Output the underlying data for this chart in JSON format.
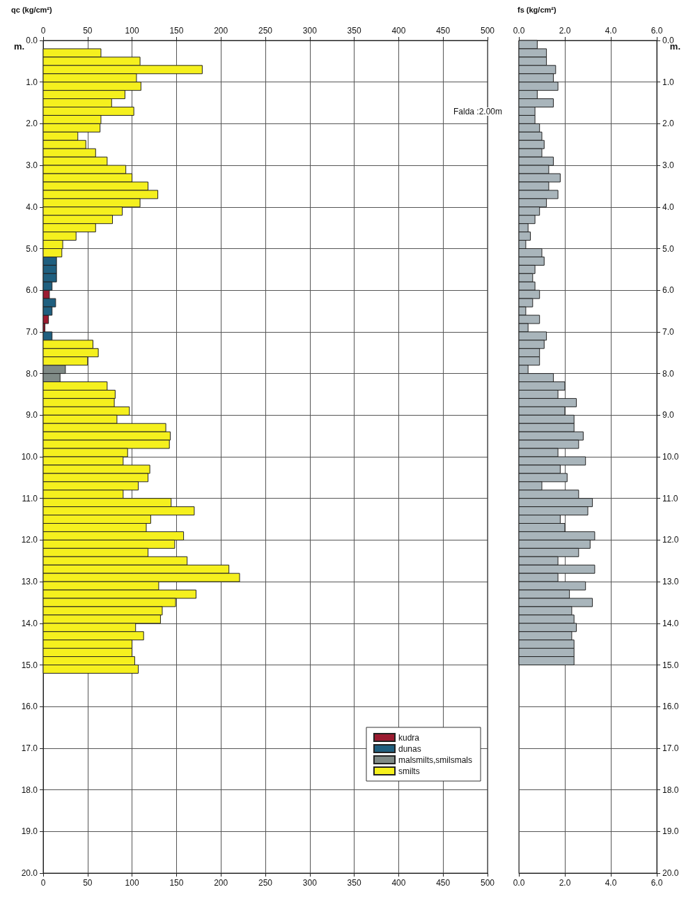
{
  "chart_data": [
    {
      "type": "bar",
      "orientation": "horizontal",
      "x2label": "qc (kg/cm²)",
      "ylabel": "m.",
      "xlim": [
        0,
        500
      ],
      "xticks": [
        0,
        50,
        100,
        150,
        200,
        250,
        300,
        350,
        400,
        450,
        500
      ],
      "x2lim": [
        0,
        500
      ],
      "x2ticks": [
        0,
        50,
        100,
        150,
        200,
        250,
        300,
        350,
        400,
        450,
        500
      ],
      "ylim": [
        20,
        0
      ],
      "yticks": [
        {
          "value": 0,
          "label": "0.0"
        },
        {
          "value": 1,
          "label": "1.0"
        },
        {
          "value": 2,
          "label": "2.0"
        },
        {
          "value": 3,
          "label": "3.0"
        },
        {
          "value": 4,
          "label": "4.0"
        },
        {
          "value": 5,
          "label": "5.0"
        },
        {
          "value": 6,
          "label": "6.0"
        },
        {
          "value": 7,
          "label": "7.0"
        },
        {
          "value": 8,
          "label": "8.0"
        },
        {
          "value": 9,
          "label": "9.0"
        },
        {
          "value": 10,
          "label": "10.0"
        },
        {
          "value": 11,
          "label": "11.0"
        },
        {
          "value": 12,
          "label": "12.0"
        },
        {
          "value": 13,
          "label": "13.0"
        },
        {
          "value": 14,
          "label": "14.0"
        },
        {
          "value": 15,
          "label": "15.0"
        },
        {
          "value": 16,
          "label": "16.0"
        },
        {
          "value": 17,
          "label": "17.0"
        },
        {
          "value": 18,
          "label": "18.0"
        },
        {
          "value": 19,
          "label": "19.0"
        },
        {
          "value": 20,
          "label": "20.0"
        }
      ],
      "grid": true,
      "legend": "bottom right",
      "annotations": [
        "Falda :2.00m"
      ],
      "series": [
        {
          "name": "kudra",
          "color": "#9b1b30",
          "x": [
            6.1,
            6.7,
            6.9
          ],
          "values": [
            7,
            6,
            2
          ]
        },
        {
          "name": "dunas",
          "color": "#1f5f7f",
          "x": [
            5.3,
            5.5,
            5.7,
            5.9,
            6.3,
            6.5,
            7.1
          ],
          "values": [
            15,
            15,
            15,
            10,
            14,
            10,
            10
          ]
        },
        {
          "name": "malsmilts,smilsmals",
          "color": "#7f8a86",
          "x": [
            7.9,
            8.1
          ],
          "values": [
            25,
            19
          ]
        },
        {
          "name": "smilts",
          "color": "#f5f01e",
          "x": [
            0.3,
            0.5,
            0.7,
            0.9,
            1.1,
            1.3,
            1.5,
            1.7,
            1.9,
            2.1,
            2.3,
            2.5,
            2.7,
            2.9,
            3.1,
            3.3,
            3.5,
            3.7,
            3.9,
            4.1,
            4.3,
            4.5,
            4.7,
            4.9,
            5.1,
            7.3,
            7.5,
            7.7,
            8.3,
            8.5,
            8.7,
            8.9,
            9.1,
            9.3,
            9.5,
            9.7,
            9.9,
            10.1,
            10.3,
            10.5,
            10.7,
            10.9,
            11.1,
            11.3,
            11.5,
            11.7,
            11.9,
            12.1,
            12.3,
            12.5,
            12.7,
            12.9,
            13.1,
            13.3,
            13.5,
            13.7,
            13.9,
            14.1,
            14.3,
            14.5,
            14.7,
            14.9,
            15.1
          ],
          "values": [
            65,
            109,
            179,
            105,
            110,
            92,
            77,
            102,
            65,
            64,
            39,
            48,
            59,
            72,
            93,
            100,
            118,
            129,
            109,
            89,
            78,
            59,
            37,
            22,
            21,
            56,
            62,
            50,
            72,
            81,
            80,
            97,
            83,
            138,
            143,
            142,
            95,
            90,
            120,
            118,
            107,
            90,
            144,
            170,
            121,
            116,
            158,
            148,
            118,
            162,
            209,
            221,
            130,
            172,
            149,
            134,
            132,
            104,
            113,
            100,
            100,
            103,
            107
          ]
        }
      ]
    },
    {
      "type": "bar",
      "orientation": "horizontal",
      "x2label": "fs (kg/cm²)",
      "ylabel": "m.",
      "xlim": [
        0,
        6
      ],
      "xticks": [
        {
          "value": 0,
          "label": "0.0"
        },
        {
          "value": 2,
          "label": "2.0"
        },
        {
          "value": 4,
          "label": "4.0"
        },
        {
          "value": 6,
          "label": "6.0"
        }
      ],
      "x2lim": [
        0,
        6
      ],
      "x2ticks": [
        {
          "value": 0,
          "label": "0.0"
        },
        {
          "value": 2,
          "label": "2.0"
        },
        {
          "value": 4,
          "label": "4.0"
        },
        {
          "value": 6,
          "label": "6.0"
        }
      ],
      "ylim": [
        20,
        0
      ],
      "yticks": [
        {
          "value": 0,
          "label": "0.0"
        },
        {
          "value": 1,
          "label": "1.0"
        },
        {
          "value": 2,
          "label": "2.0"
        },
        {
          "value": 3,
          "label": "3.0"
        },
        {
          "value": 4,
          "label": "4.0"
        },
        {
          "value": 5,
          "label": "5.0"
        },
        {
          "value": 6,
          "label": "6.0"
        },
        {
          "value": 7,
          "label": "7.0"
        },
        {
          "value": 8,
          "label": "8.0"
        },
        {
          "value": 9,
          "label": "9.0"
        },
        {
          "value": 10,
          "label": "10.0"
        },
        {
          "value": 11,
          "label": "11.0"
        },
        {
          "value": 12,
          "label": "12.0"
        },
        {
          "value": 13,
          "label": "13.0"
        },
        {
          "value": 14,
          "label": "14.0"
        },
        {
          "value": 15,
          "label": "15.0"
        },
        {
          "value": 16,
          "label": "16.0"
        },
        {
          "value": 17,
          "label": "17.0"
        },
        {
          "value": 18,
          "label": "18.0"
        },
        {
          "value": 19,
          "label": "19.0"
        },
        {
          "value": 20,
          "label": "20.0"
        }
      ],
      "grid": true,
      "series": [
        {
          "color": "#a9b5bb",
          "x": [
            0.1,
            0.3,
            0.5,
            0.7,
            0.9,
            1.1,
            1.3,
            1.5,
            1.7,
            1.9,
            2.1,
            2.3,
            2.5,
            2.7,
            2.9,
            3.1,
            3.3,
            3.5,
            3.7,
            3.9,
            4.1,
            4.3,
            4.5,
            4.7,
            4.9,
            5.1,
            5.3,
            5.5,
            5.7,
            5.9,
            6.1,
            6.3,
            6.5,
            6.7,
            6.9,
            7.1,
            7.3,
            7.5,
            7.7,
            7.9,
            8.1,
            8.3,
            8.5,
            8.7,
            8.9,
            9.1,
            9.3,
            9.5,
            9.7,
            9.9,
            10.1,
            10.3,
            10.5,
            10.7,
            10.9,
            11.1,
            11.3,
            11.5,
            11.7,
            11.9,
            12.1,
            12.3,
            12.5,
            12.7,
            12.9,
            13.1,
            13.3,
            13.5,
            13.7,
            13.9,
            14.1,
            14.3,
            14.5,
            14.7,
            14.9
          ],
          "values": [
            0.8,
            1.2,
            1.2,
            1.6,
            1.5,
            1.7,
            0.8,
            1.5,
            0.7,
            0.7,
            0.9,
            1.0,
            1.1,
            1.0,
            1.5,
            1.3,
            1.8,
            1.3,
            1.7,
            1.2,
            0.9,
            0.7,
            0.4,
            0.5,
            0.3,
            1.0,
            1.1,
            0.7,
            0.6,
            0.7,
            0.9,
            0.6,
            0.3,
            0.9,
            0.4,
            1.2,
            1.1,
            0.9,
            0.9,
            0.4,
            1.5,
            2.0,
            1.7,
            2.5,
            2.0,
            2.4,
            2.4,
            2.8,
            2.6,
            1.7,
            2.9,
            1.8,
            2.1,
            1.0,
            2.6,
            3.2,
            3.0,
            1.8,
            2.0,
            3.3,
            3.1,
            2.6,
            1.7,
            3.3,
            1.7,
            2.9,
            2.2,
            3.2,
            2.3,
            2.4,
            2.5,
            2.3,
            2.4,
            2.4,
            2.4
          ]
        }
      ]
    }
  ]
}
